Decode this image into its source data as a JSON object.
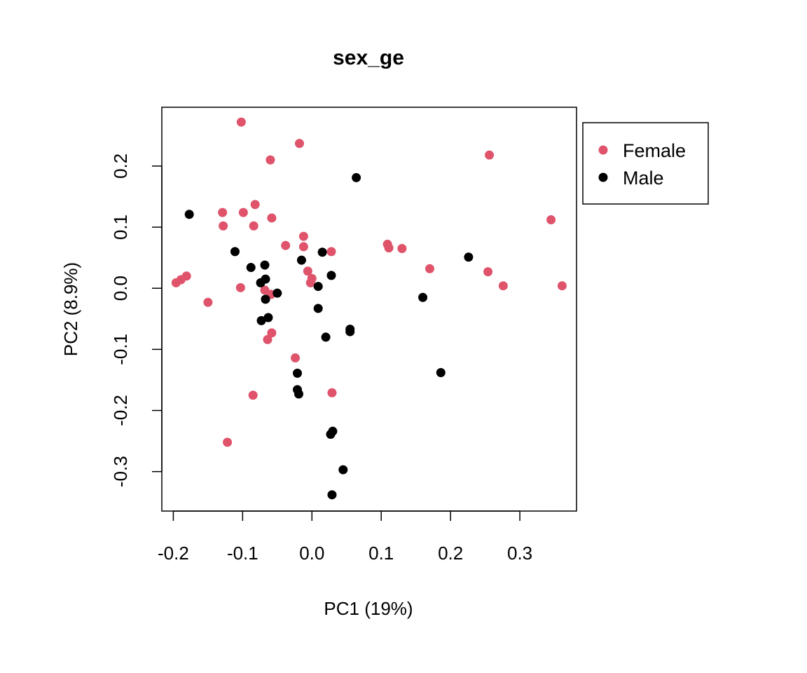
{
  "chart_data": {
    "type": "scatter",
    "title": "sex_ge",
    "xlabel": "PC1 (19%)",
    "ylabel": "PC2 (8.9%)",
    "xlim": [
      -0.2166,
      0.3818
    ],
    "ylim": [
      -0.3646,
      0.2962
    ],
    "xticks": [
      -0.2,
      -0.1,
      0.0,
      0.1,
      0.2,
      0.3
    ],
    "xtick_labels": [
      "-0.2",
      "-0.1",
      "0.0",
      "0.1",
      "0.2",
      "0.3"
    ],
    "yticks": [
      -0.3,
      -0.2,
      -0.1,
      0.0,
      0.1,
      0.2
    ],
    "ytick_labels": [
      "-0.3",
      "-0.2",
      "-0.1",
      "0.0",
      "0.1",
      "0.2"
    ],
    "grid": false,
    "legend_position": "outside-top-right",
    "series": [
      {
        "name": "Female",
        "color": "#DF536B",
        "points": [
          [
            -0.102,
            0.272
          ],
          [
            -0.018,
            0.237
          ],
          [
            -0.06,
            0.21
          ],
          [
            0.256,
            0.218
          ],
          [
            -0.129,
            0.124
          ],
          [
            -0.099,
            0.124
          ],
          [
            -0.082,
            0.137
          ],
          [
            -0.128,
            0.102
          ],
          [
            -0.084,
            0.102
          ],
          [
            -0.058,
            0.115
          ],
          [
            0.345,
            0.112
          ],
          [
            -0.038,
            0.07
          ],
          [
            -0.012,
            0.085
          ],
          [
            -0.012,
            0.068
          ],
          [
            0.028,
            0.06
          ],
          [
            0.109,
            0.072
          ],
          [
            0.111,
            0.066
          ],
          [
            0.13,
            0.065
          ],
          [
            0.17,
            0.032
          ],
          [
            0.254,
            0.027
          ],
          [
            0.276,
            0.004
          ],
          [
            0.361,
            0.004
          ],
          [
            -0.196,
            0.009
          ],
          [
            -0.189,
            0.014
          ],
          [
            -0.181,
            0.02
          ],
          [
            -0.15,
            -0.023
          ],
          [
            -0.103,
            0.001
          ],
          [
            -0.006,
            0.028
          ],
          [
            0.0,
            0.016
          ],
          [
            -0.002,
            0.009
          ],
          [
            -0.068,
            -0.003
          ],
          [
            -0.059,
            -0.01
          ],
          [
            -0.058,
            -0.073
          ],
          [
            -0.064,
            -0.084
          ],
          [
            -0.024,
            -0.114
          ],
          [
            0.029,
            -0.171
          ],
          [
            -0.085,
            -0.175
          ],
          [
            -0.122,
            -0.252
          ]
        ]
      },
      {
        "name": "Male",
        "color": "#000000",
        "points": [
          [
            0.064,
            0.181
          ],
          [
            -0.177,
            0.121
          ],
          [
            -0.111,
            0.06
          ],
          [
            -0.088,
            0.034
          ],
          [
            -0.068,
            0.038
          ],
          [
            -0.015,
            0.046
          ],
          [
            0.015,
            0.059
          ],
          [
            0.226,
            0.051
          ],
          [
            0.028,
            0.021
          ],
          [
            -0.074,
            0.009
          ],
          [
            -0.067,
            0.015
          ],
          [
            -0.05,
            -0.008
          ],
          [
            0.009,
            0.003
          ],
          [
            -0.067,
            -0.018
          ],
          [
            0.16,
            -0.015
          ],
          [
            0.009,
            -0.033
          ],
          [
            -0.073,
            -0.053
          ],
          [
            -0.063,
            -0.048
          ],
          [
            0.055,
            -0.067
          ],
          [
            0.055,
            -0.071
          ],
          [
            0.02,
            -0.08
          ],
          [
            0.186,
            -0.138
          ],
          [
            -0.021,
            -0.139
          ],
          [
            -0.021,
            -0.166
          ],
          [
            -0.019,
            -0.173
          ],
          [
            0.03,
            -0.234
          ],
          [
            0.027,
            -0.239
          ],
          [
            0.045,
            -0.297
          ],
          [
            0.029,
            -0.338
          ]
        ]
      }
    ]
  }
}
